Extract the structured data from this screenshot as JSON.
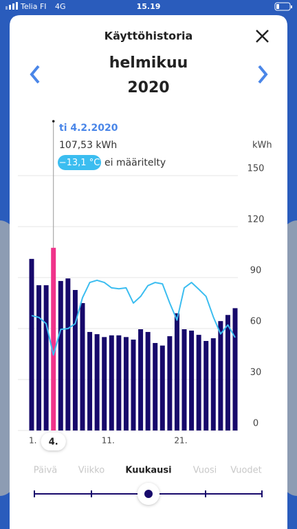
{
  "status": {
    "carrier": "Telia FI",
    "network": "4G",
    "time": "15.19"
  },
  "header": {
    "title": "Käyttöhistoria",
    "month": "helmikuu",
    "year": "2020"
  },
  "chart_data": {
    "type": "bar",
    "y_label": "kWh",
    "categories": [
      "1.",
      null,
      null,
      "4.",
      null,
      null,
      null,
      null,
      null,
      null,
      "11.",
      null,
      null,
      null,
      null,
      null,
      null,
      null,
      null,
      null,
      "21.",
      null,
      null,
      null,
      null,
      null,
      null,
      null,
      null
    ],
    "values": [
      101,
      85.5,
      85.5,
      107.53,
      88,
      89.5,
      82.7,
      75,
      58,
      56.7,
      55,
      56,
      56,
      55,
      53.5,
      59.6,
      58,
      51.5,
      50,
      55.5,
      69,
      59.6,
      58.8,
      56.3,
      52.7,
      54.3,
      64.4,
      68,
      72
    ],
    "color": "#17096b",
    "selected": 3,
    "selected_color": "#f0338a",
    "ylim": [
      0,
      150
    ],
    "yticks": [
      0,
      30,
      60,
      90,
      120,
      150
    ],
    "grid": true,
    "temperature": {
      "color": "#3bbdf0",
      "axis": "y2",
      "values": [
        -4.3,
        -4.7,
        -6.1,
        -13.1,
        -7.4,
        -7.2,
        -6.1,
        -0.3,
        3.1,
        3.6,
        3.1,
        1.9,
        1.7,
        1.9,
        -1.5,
        0,
        2.4,
        3.1,
        2.8,
        -1.5,
        -5.3,
        1.9,
        3.1,
        1.6,
        0,
        -4.6,
        -8.4,
        -6.4,
        -9.2
      ]
    },
    "y2lim": [
      -30,
      27
    ],
    "tooltip": {
      "date": "ti 4.2.2020",
      "value_label": "107,53 kWh",
      "temp_label": "−13,1 °C",
      "note": "ei määritelty"
    }
  },
  "tabs": {
    "items": [
      "Päivä",
      "Viikko",
      "Kuukausi",
      "Vuosi",
      "Vuodet"
    ],
    "selected": 2
  }
}
